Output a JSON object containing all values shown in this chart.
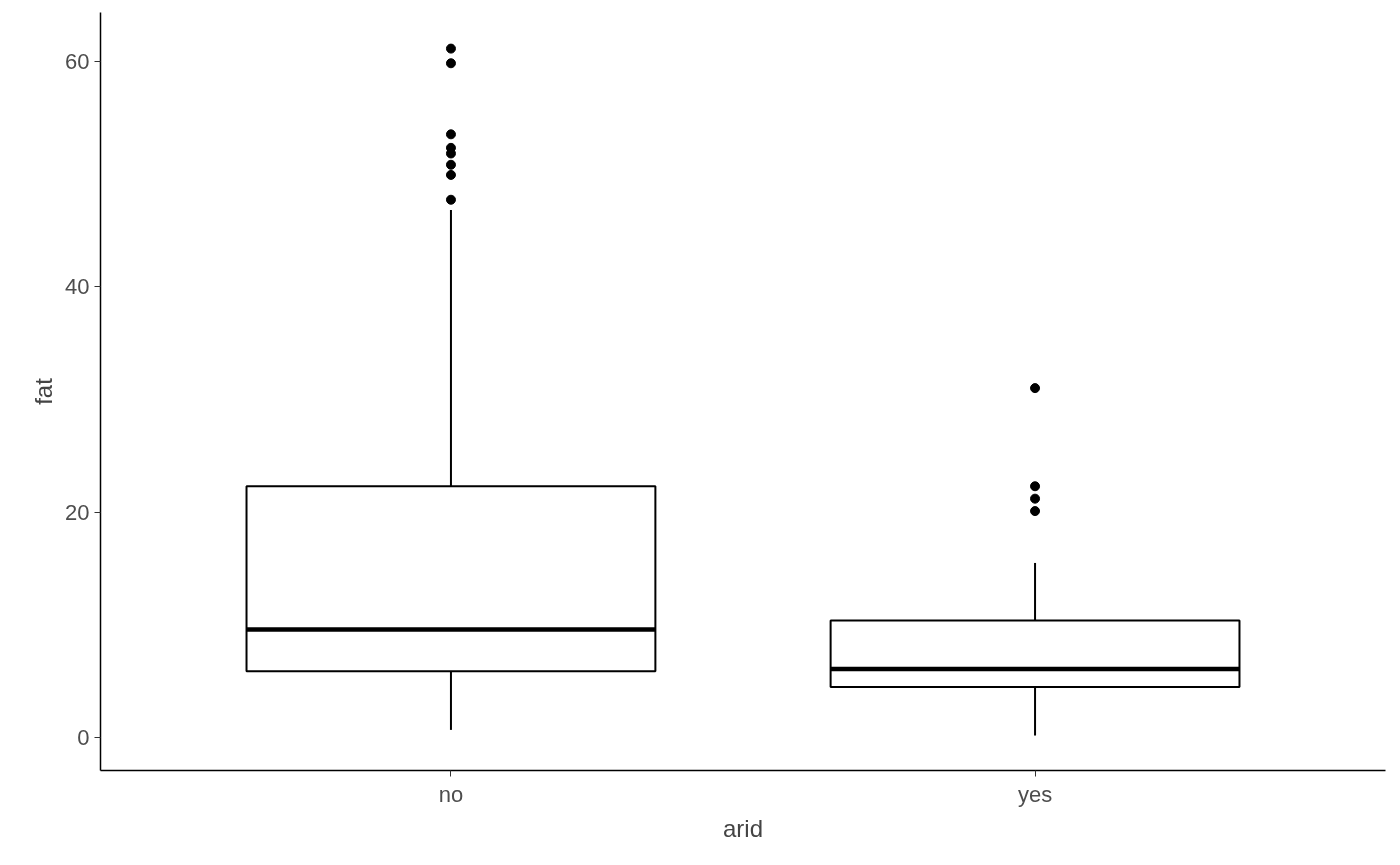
{
  "chart_data": {
    "type": "box",
    "xlabel": "arid",
    "ylabel": "fat",
    "categories": [
      "no",
      "yes"
    ],
    "boxes": [
      {
        "low": 0.7,
        "q1": 5.9,
        "median": 9.6,
        "q3": 22.3,
        "high": 46.8,
        "outliers": [
          61.1,
          59.8,
          53.5,
          52.3,
          51.8,
          50.8,
          49.9,
          47.7
        ]
      },
      {
        "low": 0.2,
        "q1": 4.5,
        "median": 6.1,
        "q3": 10.4,
        "high": 15.5,
        "outliers": [
          31.0,
          22.3,
          21.2,
          20.1
        ]
      }
    ],
    "color": "#000000",
    "ylim": [
      -2.9,
      64.3
    ],
    "yticks": [
      0,
      20,
      40,
      60
    ],
    "grid": false
  }
}
